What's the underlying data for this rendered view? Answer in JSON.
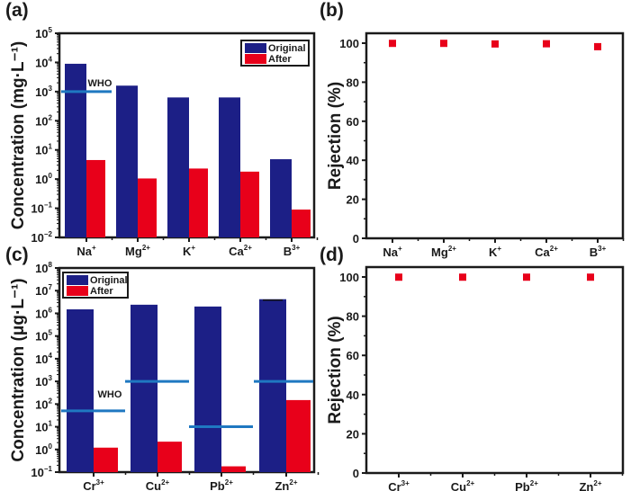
{
  "colors": {
    "original": "#1c1f86",
    "after": "#e8001a",
    "who": "#1f78c1",
    "marker": "#e8001a",
    "axis": "#1a1a1a"
  },
  "chart_data": [
    {
      "panel": "(a)",
      "type": "bar",
      "yscale": "log",
      "title": "",
      "xlabel": "",
      "ylabel": "Concentration (mg·L⁻¹)",
      "ylim": [
        0.01,
        100000
      ],
      "yticks": [
        {
          "e": "-2"
        },
        {
          "e": "-1"
        },
        {
          "e": "0"
        },
        {
          "e": "1"
        },
        {
          "e": "2"
        },
        {
          "e": "3"
        },
        {
          "e": "4"
        },
        {
          "e": "5"
        }
      ],
      "categories": [
        {
          "base": "Na",
          "sup": "+"
        },
        {
          "base": "Mg",
          "sup": "2+"
        },
        {
          "base": "K",
          "sup": "+"
        },
        {
          "base": "Ca",
          "sup": "2+"
        },
        {
          "base": "B",
          "sup": "3+"
        }
      ],
      "series": [
        {
          "name": "Original",
          "values": [
            9000,
            1600,
            630,
            630,
            4.8
          ]
        },
        {
          "name": "After",
          "values": [
            4.5,
            1.05,
            2.3,
            1.8,
            0.09
          ]
        }
      ],
      "who": {
        "label": "WHO",
        "lines": [
          {
            "category_index": 0,
            "value": 1000
          }
        ]
      },
      "legend": {
        "position": "top-right",
        "entries": [
          "Original",
          "After"
        ]
      }
    },
    {
      "panel": "(b)",
      "type": "scatter",
      "title": "",
      "xlabel": "",
      "ylabel": "Rejection (%)",
      "ylim": [
        0,
        100
      ],
      "yticks": [
        0,
        20,
        40,
        60,
        80,
        100
      ],
      "categories": [
        {
          "base": "Na",
          "sup": "+"
        },
        {
          "base": "Mg",
          "sup": "2+"
        },
        {
          "base": "K",
          "sup": "+"
        },
        {
          "base": "Ca",
          "sup": "2+"
        },
        {
          "base": "B",
          "sup": "3+"
        }
      ],
      "values": [
        99.9,
        99.9,
        99.6,
        99.7,
        98.2
      ]
    },
    {
      "panel": "(c)",
      "type": "bar",
      "yscale": "log",
      "title": "",
      "xlabel": "",
      "ylabel": "Concentration (μg·L⁻¹)",
      "ylim": [
        0.1,
        100000000
      ],
      "yticks": [
        {
          "e": "-1"
        },
        {
          "e": "0"
        },
        {
          "e": "1"
        },
        {
          "e": "2"
        },
        {
          "e": "3"
        },
        {
          "e": "4"
        },
        {
          "e": "5"
        },
        {
          "e": "6"
        },
        {
          "e": "7"
        },
        {
          "e": "8"
        }
      ],
      "categories": [
        {
          "base": "Cr",
          "sup": "3+"
        },
        {
          "base": "Cu",
          "sup": "2+"
        },
        {
          "base": "Pb",
          "sup": "2+"
        },
        {
          "base": "Zn",
          "sup": "2+"
        }
      ],
      "series": [
        {
          "name": "Original",
          "values": [
            1500000,
            2400000,
            2000000,
            4200000
          ]
        },
        {
          "name": "After",
          "values": [
            1.2,
            2.2,
            0.18,
            150
          ]
        }
      ],
      "who": {
        "label": "WHO",
        "lines": [
          {
            "category_index": 0,
            "value": 50
          },
          {
            "category_index": 1,
            "value": 1000
          },
          {
            "category_index": 2,
            "value": 10
          },
          {
            "category_index": 3,
            "value": 1000
          }
        ]
      },
      "legend": {
        "position": "top-left",
        "entries": [
          "Original",
          "After"
        ]
      }
    },
    {
      "panel": "(d)",
      "type": "scatter",
      "title": "",
      "xlabel": "",
      "ylabel": "Rejection (%)",
      "ylim": [
        0,
        100
      ],
      "yticks": [
        0,
        20,
        40,
        60,
        80,
        100
      ],
      "categories": [
        {
          "base": "Cr",
          "sup": "3+"
        },
        {
          "base": "Cu",
          "sup": "2+"
        },
        {
          "base": "Pb",
          "sup": "2+"
        },
        {
          "base": "Zn",
          "sup": "2+"
        }
      ],
      "values": [
        99.9,
        99.9,
        99.9,
        99.9
      ]
    }
  ]
}
